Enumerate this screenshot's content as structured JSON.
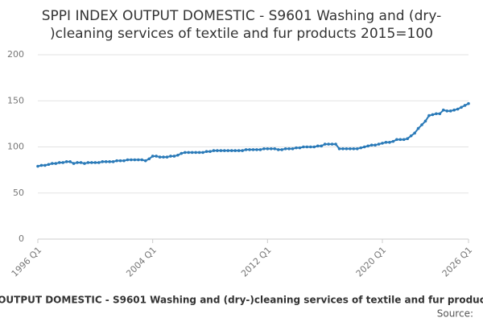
{
  "chart_data": {
    "type": "line",
    "title": [
      "SPPI INDEX OUTPUT DOMESTIC - S9601 Washing and (dry-",
      ")cleaning services of textile and fur products 2015=100"
    ],
    "caption": "OUTPUT DOMESTIC - S9601 Washing and (dry-)cleaning services of textile and fur produc",
    "source": "Source:",
    "categories": [
      "1996 Q1",
      null,
      null,
      null,
      null,
      null,
      null,
      null,
      null,
      null,
      null,
      null,
      null,
      null,
      null,
      null,
      null,
      null,
      null,
      null,
      null,
      null,
      null,
      null,
      null,
      null,
      null,
      null,
      null,
      null,
      null,
      null,
      "2004 Q1",
      null,
      null,
      null,
      null,
      null,
      null,
      null,
      null,
      null,
      null,
      null,
      null,
      null,
      null,
      null,
      null,
      null,
      null,
      null,
      null,
      null,
      null,
      null,
      null,
      null,
      null,
      null,
      null,
      null,
      null,
      null,
      "2012 Q1",
      null,
      null,
      null,
      null,
      null,
      null,
      null,
      null,
      null,
      null,
      null,
      null,
      null,
      null,
      null,
      null,
      null,
      null,
      null,
      null,
      null,
      null,
      null,
      null,
      null,
      null,
      null,
      null,
      null,
      null,
      null,
      "2020 Q1",
      null,
      null,
      null,
      null,
      null,
      null,
      null,
      null,
      null,
      null,
      null,
      null,
      null,
      null,
      null,
      null,
      null,
      null,
      null,
      null,
      null,
      null,
      null,
      "2026 Q1"
    ],
    "series": [
      {
        "color": "#2a7ab8",
        "values": [
          79,
          80,
          80,
          81,
          82,
          82,
          83,
          83,
          84,
          84,
          82,
          83,
          83,
          82,
          83,
          83,
          83,
          83,
          84,
          84,
          84,
          84,
          85,
          85,
          85,
          86,
          86,
          86,
          86,
          86,
          85,
          87,
          90,
          90,
          89,
          89,
          89,
          90,
          90,
          91,
          93,
          94,
          94,
          94,
          94,
          94,
          94,
          95,
          95,
          96,
          96,
          96,
          96,
          96,
          96,
          96,
          96,
          96,
          97,
          97,
          97,
          97,
          97,
          98,
          98,
          98,
          98,
          97,
          97,
          98,
          98,
          98,
          99,
          99,
          100,
          100,
          100,
          100,
          101,
          101,
          103,
          103,
          103,
          103,
          98,
          98,
          98,
          98,
          98,
          98,
          99,
          100,
          101,
          102,
          102,
          103,
          104,
          105,
          105,
          106,
          108,
          108,
          108,
          109,
          112,
          115,
          120,
          124,
          128,
          134,
          135,
          136,
          136,
          140,
          139,
          139,
          140,
          141,
          143,
          145,
          147
        ]
      }
    ],
    "ylim": [
      0,
      200
    ],
    "yticks": [
      0,
      50,
      100,
      150,
      200
    ],
    "grid": true
  }
}
